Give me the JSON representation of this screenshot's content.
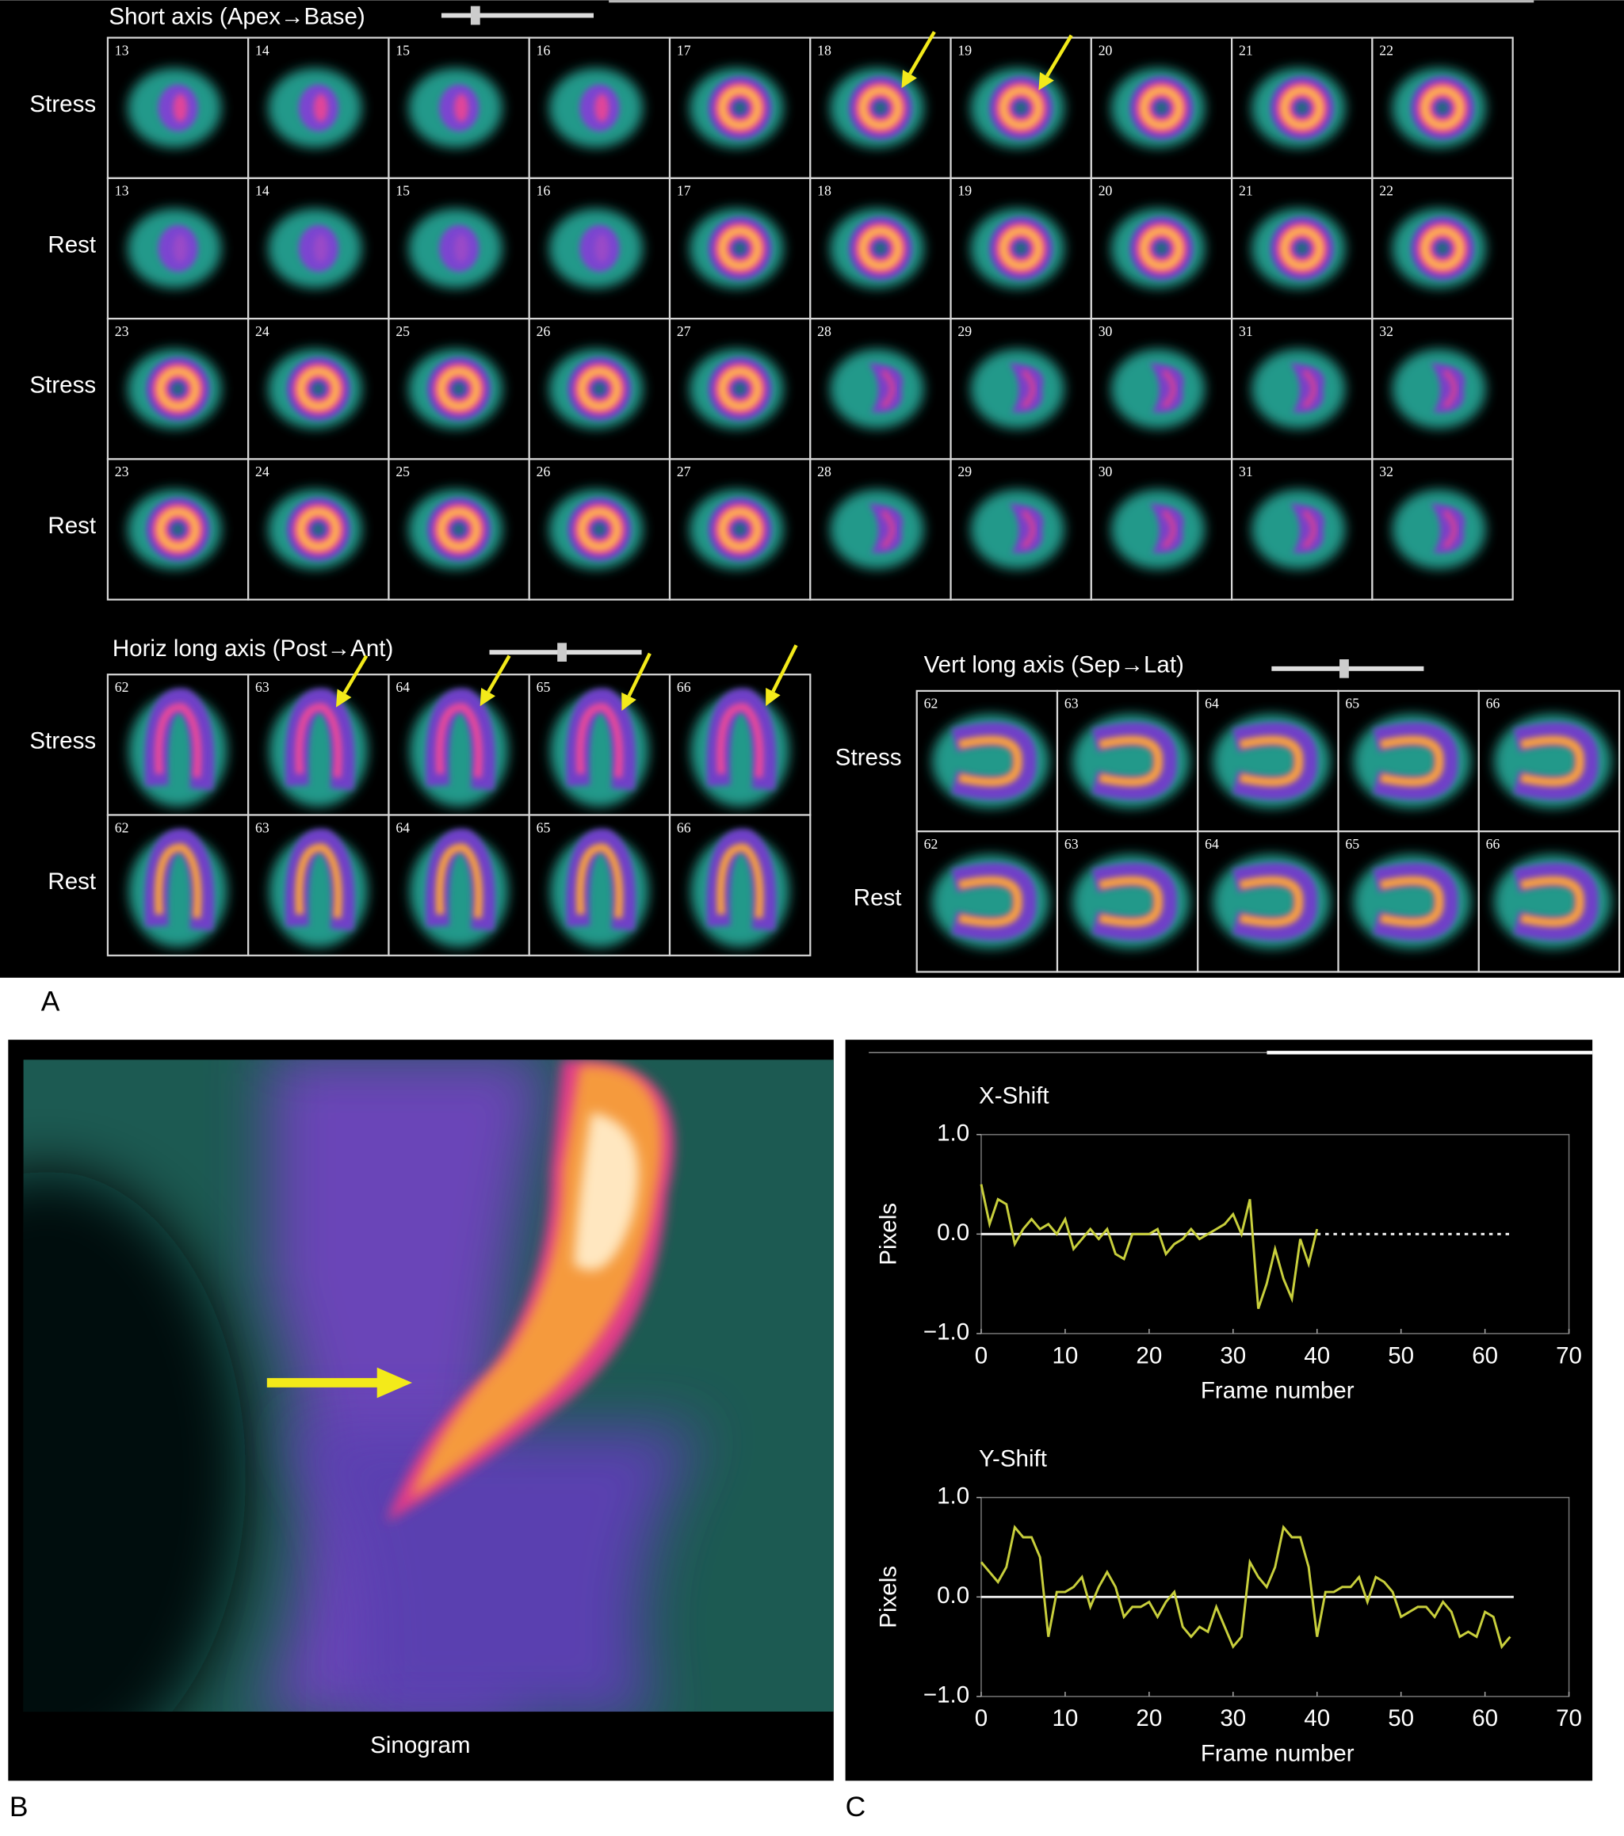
{
  "panel_a": {
    "label": "A",
    "short_axis": {
      "title": "Short axis (Apex→Base)",
      "rows": [
        {
          "label": "Stress",
          "frames": [
            "13",
            "14",
            "15",
            "16",
            "17",
            "18",
            "19",
            "20",
            "21",
            "22"
          ]
        },
        {
          "label": "Rest",
          "frames": [
            "13",
            "14",
            "15",
            "16",
            "17",
            "18",
            "19",
            "20",
            "21",
            "22"
          ]
        },
        {
          "label": "Stress",
          "frames": [
            "23",
            "24",
            "25",
            "26",
            "27",
            "28",
            "29",
            "30",
            "31",
            "32"
          ]
        },
        {
          "label": "Rest",
          "frames": [
            "23",
            "24",
            "25",
            "26",
            "27",
            "28",
            "29",
            "30",
            "31",
            "32"
          ]
        }
      ]
    },
    "horiz_long_axis": {
      "title": "Horiz long axis (Post→Ant)",
      "rows": [
        {
          "label": "Stress",
          "frames": [
            "62",
            "63",
            "64",
            "65",
            "66"
          ]
        },
        {
          "label": "Rest",
          "frames": [
            "62",
            "63",
            "64",
            "65",
            "66"
          ]
        }
      ]
    },
    "vert_long_axis": {
      "title": "Vert long axis (Sep→Lat)",
      "rows": [
        {
          "label": "Stress",
          "frames": [
            "62",
            "63",
            "64",
            "65",
            "66"
          ]
        },
        {
          "label": "Rest",
          "frames": [
            "62",
            "63",
            "64",
            "65",
            "66"
          ]
        }
      ]
    }
  },
  "panel_b": {
    "label": "B",
    "caption": "Sinogram"
  },
  "panel_c": {
    "label": "C"
  },
  "chart_data": [
    {
      "type": "line",
      "title": "X-Shift",
      "x_label": "Frame number",
      "y_label": "Pixels",
      "xlim": [
        0,
        70
      ],
      "ylim": [
        -1,
        1
      ],
      "xticks": [
        0,
        10,
        20,
        30,
        40,
        50,
        60,
        70
      ],
      "yticks": [
        {
          "value": 1,
          "label": "1.0"
        },
        {
          "value": 0,
          "label": "0.0"
        },
        {
          "value": -1,
          "label": "−1.0"
        }
      ],
      "x": [
        0,
        1,
        2,
        3,
        4,
        5,
        6,
        7,
        8,
        9,
        10,
        11,
        12,
        13,
        14,
        15,
        16,
        17,
        18,
        19,
        20,
        21,
        22,
        23,
        24,
        25,
        26,
        27,
        28,
        29,
        30,
        31,
        32,
        33,
        34,
        35,
        36,
        37,
        38,
        39,
        40
      ],
      "series": [
        {
          "color": "#c8cf3c",
          "values": [
            0.5,
            0.1,
            0.35,
            0.3,
            -0.1,
            0.05,
            0.15,
            0.05,
            0.1,
            0.0,
            0.15,
            -0.15,
            -0.05,
            0.05,
            -0.05,
            0.05,
            -0.2,
            -0.25,
            0.0,
            0.0,
            0.0,
            0.05,
            -0.2,
            -0.1,
            -0.05,
            0.05,
            -0.05,
            0.0,
            0.05,
            0.1,
            0.2,
            0.0,
            0.35,
            -0.75,
            -0.5,
            -0.15,
            -0.45,
            -0.65,
            -0.05,
            -0.3,
            0.05
          ]
        }
      ]
    },
    {
      "type": "line",
      "title": "Y-Shift",
      "x_label": "Frame number",
      "y_label": "Pixels",
      "xlim": [
        0,
        70
      ],
      "ylim": [
        -1,
        1
      ],
      "xticks": [
        0,
        10,
        20,
        30,
        40,
        50,
        60,
        70
      ],
      "yticks": [
        {
          "value": 1,
          "label": "1.0"
        },
        {
          "value": 0,
          "label": "0.0"
        },
        {
          "value": -1,
          "label": "−1.0"
        }
      ],
      "x": [
        0,
        1,
        2,
        3,
        4,
        5,
        6,
        7,
        8,
        9,
        10,
        11,
        12,
        13,
        14,
        15,
        16,
        17,
        18,
        19,
        20,
        21,
        22,
        23,
        24,
        25,
        26,
        27,
        28,
        29,
        30,
        31,
        32,
        33,
        34,
        35,
        36,
        37,
        38,
        39,
        40,
        41,
        42,
        43,
        44,
        45,
        46,
        47,
        48,
        49,
        50,
        51,
        52,
        53,
        54,
        55,
        56,
        57,
        58,
        59,
        60,
        61,
        62,
        63
      ],
      "series": [
        {
          "color": "#c8cf3c",
          "values": [
            0.35,
            0.25,
            0.15,
            0.3,
            0.7,
            0.6,
            0.6,
            0.4,
            -0.4,
            0.05,
            0.05,
            0.1,
            0.2,
            -0.1,
            0.1,
            0.25,
            0.1,
            -0.2,
            -0.1,
            -0.1,
            -0.05,
            -0.2,
            -0.05,
            0.05,
            -0.3,
            -0.4,
            -0.3,
            -0.35,
            -0.1,
            -0.3,
            -0.5,
            -0.4,
            0.35,
            0.2,
            0.1,
            0.3,
            0.7,
            0.6,
            0.6,
            0.3,
            -0.4,
            0.05,
            0.05,
            0.1,
            0.1,
            0.2,
            -0.05,
            0.2,
            0.15,
            0.05,
            -0.2,
            -0.15,
            -0.1,
            -0.1,
            -0.2,
            -0.05,
            -0.15,
            -0.4,
            -0.35,
            -0.4,
            -0.15,
            -0.2,
            -0.5,
            -0.4
          ]
        }
      ]
    }
  ]
}
